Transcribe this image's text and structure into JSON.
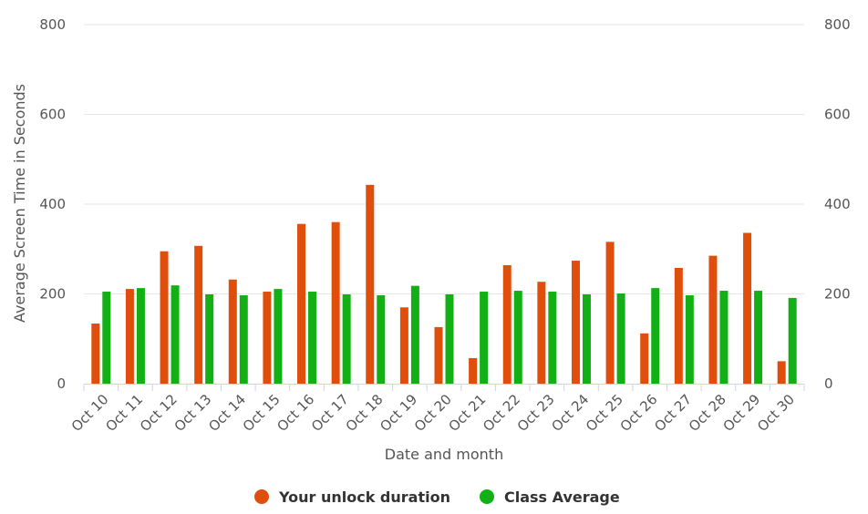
{
  "chart_data": {
    "type": "bar",
    "xlabel": "Date and month",
    "ylabel": "Average Screen Time in Seconds",
    "ylim": [
      0,
      800
    ],
    "yticks": [
      0,
      200,
      400,
      600,
      800
    ],
    "right_yticks": [
      0,
      200,
      400,
      600,
      800
    ],
    "grid": true,
    "legend_position": "bottom-center",
    "categories": [
      "Oct 10",
      "Oct 11",
      "Oct 12",
      "Oct 13",
      "Oct 14",
      "Oct 15",
      "Oct 16",
      "Oct 17",
      "Oct 18",
      "Oct 19",
      "Oct 20",
      "Oct 21",
      "Oct 22",
      "Oct 23",
      "Oct 24",
      "Oct 25",
      "Oct 26",
      "Oct 27",
      "Oct 28",
      "Oct 29",
      "Oct 30"
    ],
    "series": [
      {
        "name": "Your unlock duration",
        "color": "#e04e0b",
        "values": [
          134,
          211,
          295,
          307,
          232,
          205,
          356,
          360,
          443,
          170,
          126,
          57,
          264,
          227,
          274,
          316,
          112,
          258,
          285,
          336,
          50
        ]
      },
      {
        "name": "Class Average",
        "color": "#12b014",
        "values": [
          205,
          213,
          219,
          199,
          197,
          211,
          205,
          199,
          197,
          218,
          199,
          205,
          207,
          205,
          199,
          201,
          213,
          197,
          207,
          207,
          191
        ]
      }
    ]
  }
}
